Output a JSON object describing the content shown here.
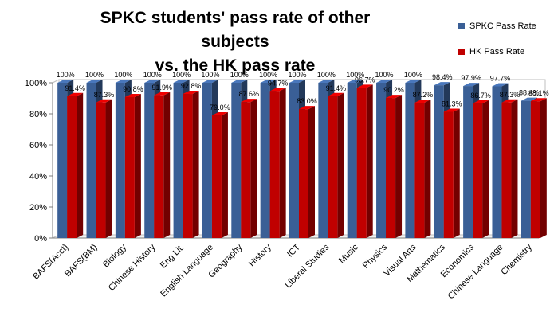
{
  "chart_data": {
    "type": "bar",
    "title_line1": "SPKC students' pass rate of other subjects",
    "title_line2": "vs. the HK pass rate",
    "xlabel": "",
    "ylabel": "",
    "ylim": [
      0,
      100
    ],
    "yticks": [
      "0%",
      "20%",
      "40%",
      "60%",
      "80%",
      "100%"
    ],
    "grid": false,
    "legend_position": "top-right",
    "categories": [
      "BAFS(Acct)",
      "BAFS(BM)",
      "Biology",
      "Chinese History",
      "Eng Lit.",
      "English Language",
      "Geography",
      "History",
      "ICT",
      "Liberal Studies",
      "Music",
      "Physics",
      "Visual Arts",
      "Mathematics",
      "Economics",
      "Chinese Language",
      "Chemistry"
    ],
    "series": [
      {
        "name": "SPKC Pass Rate",
        "color": "#3a5f96",
        "values": [
          100,
          100,
          100,
          100,
          100,
          100,
          100,
          100,
          100,
          100,
          100,
          100,
          100,
          98.4,
          97.9,
          97.7,
          88.4
        ],
        "labels": [
          "100%",
          "100%",
          "100%",
          "100%",
          "100%",
          "100%",
          "100%",
          "100%",
          "100%",
          "100%",
          "100%",
          "100%",
          "100%",
          "98.4%",
          "97.9%",
          "97.7%",
          "88.4%"
        ]
      },
      {
        "name": "HK Pass Rate",
        "color": "#c00000",
        "values": [
          91.4,
          87.3,
          90.8,
          91.9,
          92.8,
          79.0,
          87.6,
          94.7,
          83.0,
          91.4,
          96.7,
          90.2,
          87.2,
          81.3,
          86.7,
          87.3,
          88.1
        ],
        "labels": [
          "91.4%",
          "87.3%",
          "90.8%",
          "91.9%",
          "92.8%",
          "79.0%",
          "87.6%",
          "94.7%",
          "83.0%",
          "91.4%",
          "96.7%",
          "90.2%",
          "87.2%",
          "81.3%",
          "86.7%",
          "87.3%",
          "88.1%"
        ]
      }
    ]
  }
}
